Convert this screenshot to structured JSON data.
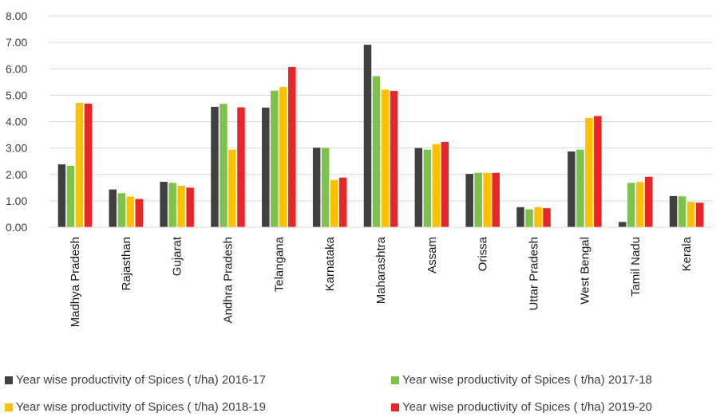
{
  "chart_data": {
    "type": "bar",
    "title": "",
    "xlabel": "",
    "ylabel": "",
    "ylim": [
      0,
      8
    ],
    "yticks": [
      "0.00",
      "1.00",
      "2.00",
      "3.00",
      "4.00",
      "5.00",
      "6.00",
      "7.00",
      "8.00"
    ],
    "grid": true,
    "legend_position": "bottom",
    "categories": [
      "Madhya Pradesh",
      "Rajasthan",
      "Gujarat",
      "Andhra Pradesh",
      "Telangana",
      "Karnataka",
      "Maharashtra",
      "Assam",
      "Orissa",
      "Uttar Pradesh",
      "West Bengal",
      "Tamil Nadu",
      "Kerala"
    ],
    "series": [
      {
        "name": "Year wise productivity of Spices ( t/ha) 2016-17",
        "color": "#404040",
        "values": [
          2.38,
          1.43,
          1.72,
          4.56,
          4.53,
          3.01,
          6.91,
          3.0,
          2.02,
          0.76,
          2.87,
          0.2,
          1.18
        ]
      },
      {
        "name": "Year wise productivity of Spices ( t/ha) 2017-18",
        "color": "#7dc24a",
        "values": [
          2.33,
          1.29,
          1.68,
          4.67,
          5.17,
          3.0,
          5.72,
          2.94,
          2.06,
          0.68,
          2.94,
          1.68,
          1.17
        ]
      },
      {
        "name": "Year wise productivity of Spices ( t/ha) 2018-19",
        "color": "#ffc000",
        "values": [
          4.71,
          1.16,
          1.57,
          2.94,
          5.31,
          1.79,
          5.21,
          3.15,
          2.06,
          0.76,
          4.14,
          1.71,
          0.96
        ]
      },
      {
        "name": "Year wise productivity of Spices ( t/ha) 2019-20",
        "color": "#e8262a",
        "values": [
          4.68,
          1.07,
          1.5,
          4.54,
          6.07,
          1.88,
          5.16,
          3.23,
          2.06,
          0.72,
          4.21,
          1.91,
          0.93
        ]
      }
    ]
  }
}
